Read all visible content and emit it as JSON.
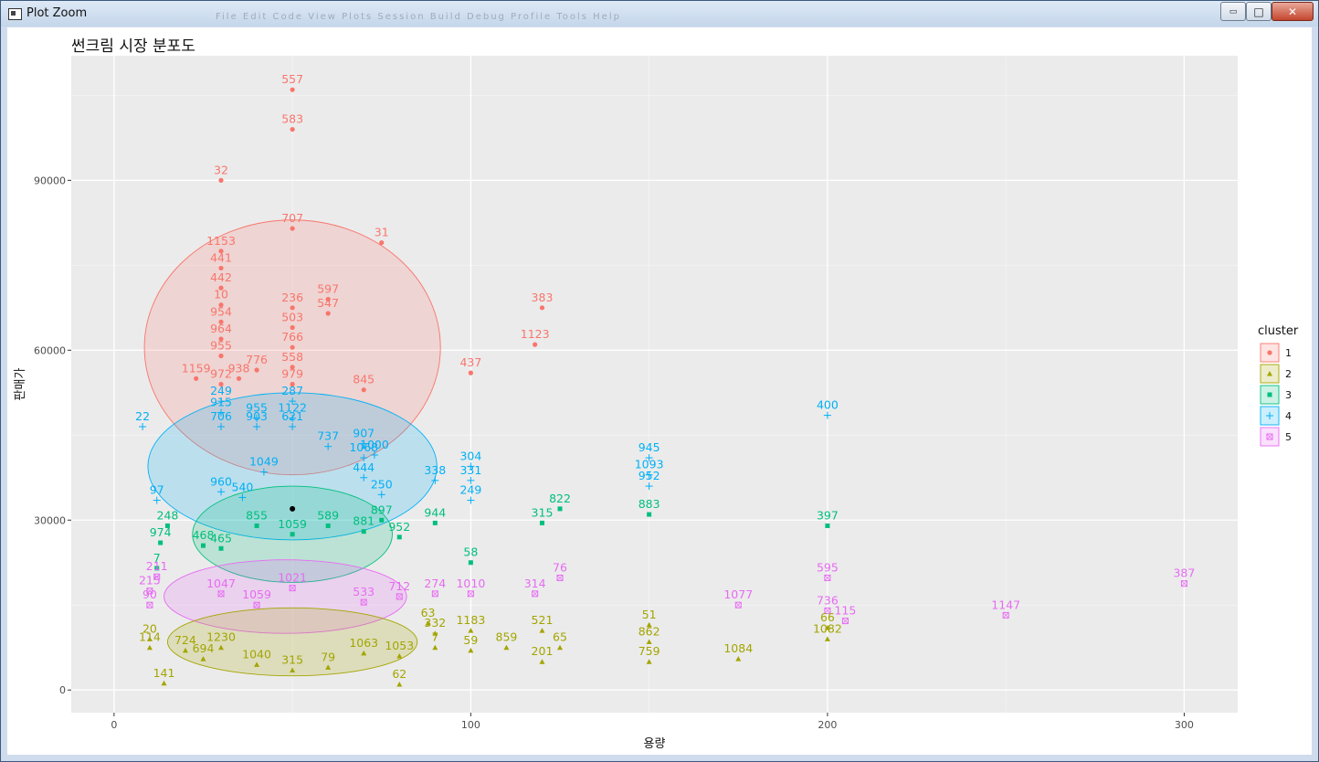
{
  "window": {
    "title": "Plot Zoom",
    "menu_ghost": "File  Edit  Code  View  Plots  Session  Build  Debug  Profile  Tools  Help"
  },
  "controls": {
    "minimize": "▭",
    "maximize": "□",
    "close": "✕"
  },
  "chart_data": {
    "type": "scatter",
    "title": "썬크림 시장 분포도",
    "xlabel": "용량",
    "ylabel": "판매가",
    "xlim": [
      -12,
      315
    ],
    "ylim": [
      -4000,
      112000
    ],
    "x_ticks": [
      "0",
      "100",
      "200",
      "300"
    ],
    "x_tick_values": [
      0,
      100,
      200,
      300
    ],
    "y_ticks": [
      "0",
      "30000",
      "60000",
      "90000"
    ],
    "y_tick_values": [
      0,
      30000,
      60000,
      90000
    ],
    "grid": true,
    "legend_title": "cluster",
    "legend_placement": "right",
    "colors": {
      "1": "#F8766D",
      "2": "#A3A500",
      "3": "#00BF7D",
      "4": "#00B0F6",
      "5": "#E76BF3"
    },
    "ellipses": [
      {
        "cluster": "1",
        "cx": 50,
        "cy": 60500,
        "rx": 41.5,
        "ry": 22500
      },
      {
        "cluster": "4",
        "cx": 50,
        "cy": 39500,
        "rx": 40.5,
        "ry": 13000
      },
      {
        "cluster": "3",
        "cx": 50,
        "cy": 27500,
        "rx": 28,
        "ry": 8500
      },
      {
        "cluster": "5",
        "cx": 48,
        "cy": 16500,
        "rx": 34,
        "ry": 6500
      },
      {
        "cluster": "2",
        "cx": 50,
        "cy": 8500,
        "rx": 35,
        "ry": 6000
      }
    ],
    "centroid": {
      "x": 50,
      "y": 32000
    },
    "series": [
      {
        "name": "1",
        "points": [
          {
            "x": 50,
            "y": 106000,
            "label": "557"
          },
          {
            "x": 50,
            "y": 99000,
            "label": "583"
          },
          {
            "x": 30,
            "y": 90000,
            "label": "32"
          },
          {
            "x": 50,
            "y": 81500,
            "label": "707"
          },
          {
            "x": 75,
            "y": 79000,
            "label": "31"
          },
          {
            "x": 30,
            "y": 77500,
            "label": "1153"
          },
          {
            "x": 30,
            "y": 74500,
            "label": "441"
          },
          {
            "x": 30,
            "y": 71000,
            "label": "442"
          },
          {
            "x": 30,
            "y": 68000,
            "label": "10"
          },
          {
            "x": 60,
            "y": 69000,
            "label": "597"
          },
          {
            "x": 60,
            "y": 66500,
            "label": "547"
          },
          {
            "x": 50,
            "y": 67500,
            "label": "236"
          },
          {
            "x": 120,
            "y": 67500,
            "label": "383"
          },
          {
            "x": 118,
            "y": 61000,
            "label": "1123"
          },
          {
            "x": 30,
            "y": 65000,
            "label": "954"
          },
          {
            "x": 50,
            "y": 64000,
            "label": "503"
          },
          {
            "x": 30,
            "y": 62000,
            "label": "964"
          },
          {
            "x": 50,
            "y": 60500,
            "label": "766"
          },
          {
            "x": 30,
            "y": 59000,
            "label": "955"
          },
          {
            "x": 50,
            "y": 57000,
            "label": "558"
          },
          {
            "x": 100,
            "y": 56000,
            "label": "437"
          },
          {
            "x": 40,
            "y": 56500,
            "label": "776"
          },
          {
            "x": 23,
            "y": 55000,
            "label": "1159"
          },
          {
            "x": 35,
            "y": 55000,
            "label": "938"
          },
          {
            "x": 70,
            "y": 53000,
            "label": "845"
          },
          {
            "x": 50,
            "y": 54000,
            "label": "979"
          },
          {
            "x": 30,
            "y": 54000,
            "label": "972"
          }
        ]
      },
      {
        "name": "4",
        "points": [
          {
            "x": 8,
            "y": 46500,
            "label": "22"
          },
          {
            "x": 200,
            "y": 48500,
            "label": "400"
          },
          {
            "x": 30,
            "y": 51000,
            "label": "249"
          },
          {
            "x": 50,
            "y": 51000,
            "label": "287"
          },
          {
            "x": 30,
            "y": 49000,
            "label": "915"
          },
          {
            "x": 40,
            "y": 48000,
            "label": "955"
          },
          {
            "x": 50,
            "y": 48000,
            "label": "1122"
          },
          {
            "x": 30,
            "y": 46500,
            "label": "706"
          },
          {
            "x": 40,
            "y": 46500,
            "label": "903"
          },
          {
            "x": 50,
            "y": 46500,
            "label": "621"
          },
          {
            "x": 73,
            "y": 41500,
            "label": "1000"
          },
          {
            "x": 70,
            "y": 43500,
            "label": "907"
          },
          {
            "x": 150,
            "y": 41000,
            "label": "945"
          },
          {
            "x": 60,
            "y": 43000,
            "label": "737"
          },
          {
            "x": 100,
            "y": 39500,
            "label": "304"
          },
          {
            "x": 70,
            "y": 41000,
            "label": "1068"
          },
          {
            "x": 150,
            "y": 38000,
            "label": "1093"
          },
          {
            "x": 100,
            "y": 37000,
            "label": "331"
          },
          {
            "x": 90,
            "y": 37000,
            "label": "338"
          },
          {
            "x": 70,
            "y": 37500,
            "label": "444"
          },
          {
            "x": 150,
            "y": 36000,
            "label": "952"
          },
          {
            "x": 100,
            "y": 33500,
            "label": "249"
          },
          {
            "x": 75,
            "y": 34500,
            "label": "250"
          },
          {
            "x": 12,
            "y": 33500,
            "label": "97"
          },
          {
            "x": 30,
            "y": 35000,
            "label": "960"
          },
          {
            "x": 42,
            "y": 38500,
            "label": "1049"
          },
          {
            "x": 36,
            "y": 34000,
            "label": "540"
          }
        ]
      },
      {
        "name": "3",
        "points": [
          {
            "x": 120,
            "y": 29500,
            "label": "315"
          },
          {
            "x": 125,
            "y": 32000,
            "label": "822"
          },
          {
            "x": 150,
            "y": 31000,
            "label": "883"
          },
          {
            "x": 200,
            "y": 29000,
            "label": "397"
          },
          {
            "x": 90,
            "y": 29500,
            "label": "944"
          },
          {
            "x": 15,
            "y": 29000,
            "label": "248"
          },
          {
            "x": 13,
            "y": 26000,
            "label": "974"
          },
          {
            "x": 25,
            "y": 25500,
            "label": "468"
          },
          {
            "x": 75,
            "y": 30000,
            "label": "897"
          },
          {
            "x": 60,
            "y": 29000,
            "label": "589"
          },
          {
            "x": 80,
            "y": 27000,
            "label": "952"
          },
          {
            "x": 100,
            "y": 22500,
            "label": "58"
          },
          {
            "x": 50,
            "y": 27500,
            "label": "1059"
          },
          {
            "x": 40,
            "y": 29000,
            "label": "855"
          },
          {
            "x": 30,
            "y": 25000,
            "label": "465"
          },
          {
            "x": 12,
            "y": 21500,
            "label": "7"
          },
          {
            "x": 70,
            "y": 28000,
            "label": "881"
          }
        ]
      },
      {
        "name": "5",
        "points": [
          {
            "x": 300,
            "y": 18800,
            "label": "387"
          },
          {
            "x": 250,
            "y": 13200,
            "label": "1147"
          },
          {
            "x": 175,
            "y": 15000,
            "label": "1077"
          },
          {
            "x": 200,
            "y": 19800,
            "label": "595"
          },
          {
            "x": 205,
            "y": 12200,
            "label": "115"
          },
          {
            "x": 200,
            "y": 14000,
            "label": "736"
          },
          {
            "x": 125,
            "y": 19800,
            "label": "76"
          },
          {
            "x": 118,
            "y": 17000,
            "label": "314"
          },
          {
            "x": 90,
            "y": 17000,
            "label": "274"
          },
          {
            "x": 12,
            "y": 20000,
            "label": "211"
          },
          {
            "x": 10,
            "y": 17500,
            "label": "215"
          },
          {
            "x": 10,
            "y": 15000,
            "label": "90"
          },
          {
            "x": 50,
            "y": 18000,
            "label": "1021"
          },
          {
            "x": 80,
            "y": 16500,
            "label": "712"
          },
          {
            "x": 30,
            "y": 17000,
            "label": "1047"
          },
          {
            "x": 100,
            "y": 17000,
            "label": "1010"
          },
          {
            "x": 40,
            "y": 15000,
            "label": "1059"
          },
          {
            "x": 70,
            "y": 15500,
            "label": "533"
          }
        ]
      },
      {
        "name": "2",
        "points": [
          {
            "x": 14,
            "y": 1200,
            "label": "141"
          },
          {
            "x": 80,
            "y": 1000,
            "label": "62"
          },
          {
            "x": 175,
            "y": 5500,
            "label": "1084"
          },
          {
            "x": 200,
            "y": 9000,
            "label": "1082"
          },
          {
            "x": 200,
            "y": 11000,
            "label": "66"
          },
          {
            "x": 150,
            "y": 11500,
            "label": "51"
          },
          {
            "x": 150,
            "y": 8500,
            "label": "862"
          },
          {
            "x": 150,
            "y": 5000,
            "label": "759"
          },
          {
            "x": 120,
            "y": 10500,
            "label": "521"
          },
          {
            "x": 120,
            "y": 5000,
            "label": "201"
          },
          {
            "x": 125,
            "y": 7500,
            "label": "65"
          },
          {
            "x": 110,
            "y": 7500,
            "label": "859"
          },
          {
            "x": 100,
            "y": 10500,
            "label": "1183"
          },
          {
            "x": 100,
            "y": 7000,
            "label": "59"
          },
          {
            "x": 90,
            "y": 7500,
            "label": "7"
          },
          {
            "x": 90,
            "y": 10000,
            "label": "332"
          },
          {
            "x": 88,
            "y": 11800,
            "label": "63"
          },
          {
            "x": 10,
            "y": 9000,
            "label": "20"
          },
          {
            "x": 10,
            "y": 7500,
            "label": "114"
          },
          {
            "x": 20,
            "y": 7000,
            "label": "724"
          },
          {
            "x": 25,
            "y": 5500,
            "label": "694"
          },
          {
            "x": 30,
            "y": 7500,
            "label": "1230"
          },
          {
            "x": 40,
            "y": 4500,
            "label": "1040"
          },
          {
            "x": 50,
            "y": 3500,
            "label": "315"
          },
          {
            "x": 60,
            "y": 4000,
            "label": "79"
          },
          {
            "x": 70,
            "y": 6500,
            "label": "1063"
          },
          {
            "x": 80,
            "y": 6000,
            "label": "1053"
          }
        ]
      }
    ]
  }
}
